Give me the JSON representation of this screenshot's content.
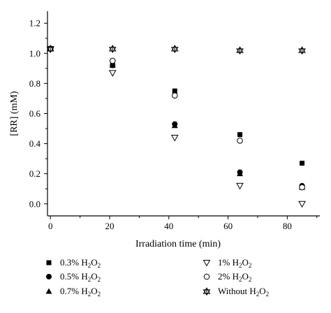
{
  "chart_data": {
    "type": "scatter",
    "title": "",
    "xlabel": "Irradiation time (min)",
    "ylabel": "[RR] (mM)",
    "xlim": [
      -1,
      91
    ],
    "ylim": [
      -0.08,
      1.28
    ],
    "x_ticks": [
      0,
      20,
      40,
      60,
      80
    ],
    "y_ticks": [
      0.0,
      0.2,
      0.4,
      0.6,
      0.8,
      1.0,
      1.2
    ],
    "y_tick_labels": [
      "0.0",
      "0.2",
      "0.4",
      "0.6",
      "0.8",
      "1.0",
      "1.2"
    ],
    "grid": false,
    "legend_position": "bottom",
    "x": [
      0,
      21,
      42,
      64,
      85
    ],
    "series": [
      {
        "name": "0.3% H2O2",
        "legend_main": "0.3% H",
        "legend_rest": "O",
        "marker": "square-filled",
        "values": [
          1.03,
          0.92,
          0.75,
          0.46,
          0.27
        ]
      },
      {
        "name": "0.5% H2O2",
        "legend_main": "0.5% H",
        "legend_rest": "O",
        "marker": "circle-filled",
        "values": [
          1.03,
          0.92,
          0.53,
          0.21,
          0.12
        ]
      },
      {
        "name": "0.7% H2O2",
        "legend_main": " 0.7% H",
        "legend_rest": "O",
        "marker": "triangle-up-filled",
        "values": [
          1.03,
          0.92,
          0.52,
          0.2,
          0.11
        ]
      },
      {
        "name": "1% H2O2",
        "legend_main": "1% H",
        "legend_rest": "O",
        "marker": "triangle-down-open",
        "values": [
          1.03,
          0.87,
          0.44,
          0.12,
          0.0
        ]
      },
      {
        "name": "2% H2O2",
        "legend_main": "2% H",
        "legend_rest": "O",
        "marker": "circle-open",
        "values": [
          1.03,
          0.95,
          0.72,
          0.42,
          0.11
        ]
      },
      {
        "name": "Without H2O2",
        "legend_main": "Without H",
        "legend_rest": "O",
        "marker": "star-triangle",
        "values": [
          1.03,
          1.03,
          1.03,
          1.02,
          1.02
        ]
      }
    ]
  }
}
